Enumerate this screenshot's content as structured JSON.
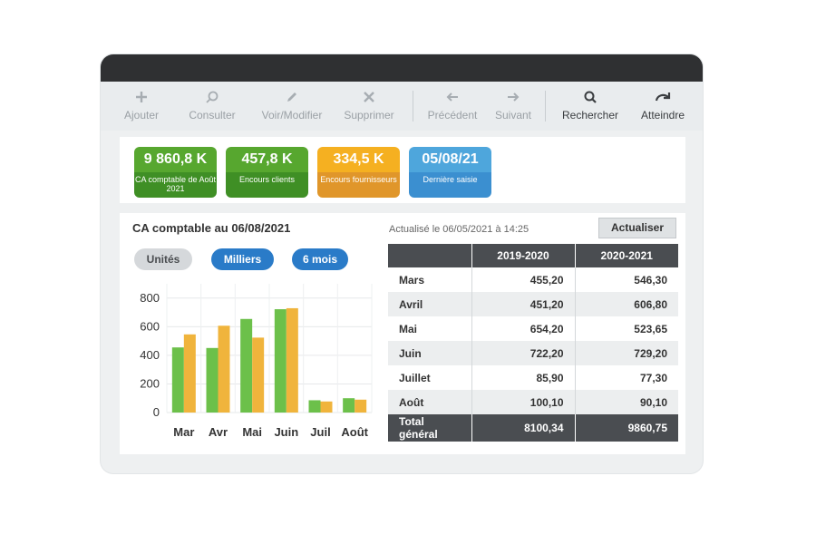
{
  "toolbar": {
    "items": [
      {
        "label": "Ajouter",
        "icon": "plus-icon"
      },
      {
        "label": "Consulter",
        "icon": "magnifier-icon"
      },
      {
        "label": "Voir/Modifier",
        "icon": "pencil-icon"
      },
      {
        "label": "Supprimer",
        "icon": "close-icon"
      },
      {
        "label": "Précédent",
        "icon": "arrow-left-icon"
      },
      {
        "label": "Suivant",
        "icon": "arrow-right-icon"
      },
      {
        "label": "Rechercher",
        "icon": "search-icon"
      },
      {
        "label": "Atteindre",
        "icon": "redo-arrow-icon"
      }
    ]
  },
  "kpis": [
    {
      "value": "9 860,8 K",
      "label": "CA comptable de Août 2021",
      "color_top": "#57a72f",
      "color_bottom": "#3f8f25"
    },
    {
      "value": "457,8 K",
      "label": "Encours clients",
      "color_top": "#57a72f",
      "color_bottom": "#3f8f25"
    },
    {
      "value": "334,5 K",
      "label": "Encours fournisseurs",
      "color_top": "#f5b021",
      "color_bottom": "#e0962a"
    },
    {
      "value": "05/08/21",
      "label": "Dernière saisie",
      "color_top": "#4ea6dc",
      "color_bottom": "#3b8fd0"
    }
  ],
  "chart_title": "CA comptable au 06/08/2021",
  "filters": {
    "units": "Unités",
    "thousands": "Milliers",
    "period": "6 mois"
  },
  "updated": "Actualisé le 06/05/2021 à 14:25",
  "refresh_label": "Actualiser",
  "chart_data": {
    "type": "bar",
    "categories": [
      "Mar",
      "Avr",
      "Mai",
      "Juin",
      "Juil",
      "Août"
    ],
    "series": [
      {
        "name": "2019-2020",
        "color": "#6cc04a",
        "values": [
          455.2,
          451.2,
          654.2,
          722.2,
          85.9,
          100.1
        ]
      },
      {
        "name": "2020-2021",
        "color": "#f0b43c",
        "values": [
          546.3,
          606.8,
          523.65,
          729.2,
          77.3,
          90.1
        ]
      }
    ],
    "ylim": [
      0,
      900
    ],
    "yticks": [
      0,
      200,
      400,
      600,
      800
    ],
    "grid": true
  },
  "table": {
    "headers": [
      "",
      "2019-2020",
      "2020-2021"
    ],
    "rows": [
      [
        "Mars",
        "455,20",
        "546,30"
      ],
      [
        "Avril",
        "451,20",
        "606,80"
      ],
      [
        "Mai",
        "654,20",
        "523,65"
      ],
      [
        "Juin",
        "722,20",
        "729,20"
      ],
      [
        "Juillet",
        "85,90",
        "77,30"
      ],
      [
        "Août",
        "100,10",
        "90,10"
      ]
    ],
    "total": [
      "Total général",
      "8100,34",
      "9860,75"
    ]
  }
}
